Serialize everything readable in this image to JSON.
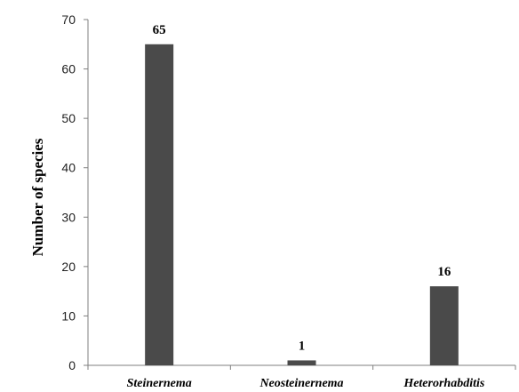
{
  "chart_data": {
    "type": "bar",
    "categories": [
      "Steinernema",
      "Neosteinernema",
      "Heterorhabditis"
    ],
    "values": [
      65,
      1,
      16
    ],
    "data_labels": [
      "65",
      "1",
      "16"
    ],
    "ylabel": "Number of species",
    "xlabel": "",
    "ylim": [
      0,
      70
    ],
    "yticks": [
      "0",
      "10",
      "20",
      "30",
      "40",
      "50",
      "60",
      "70"
    ],
    "grid": false,
    "legend": "none",
    "colors": {
      "bar": "#4a4a4a",
      "axis": "#7f7f7f"
    }
  }
}
